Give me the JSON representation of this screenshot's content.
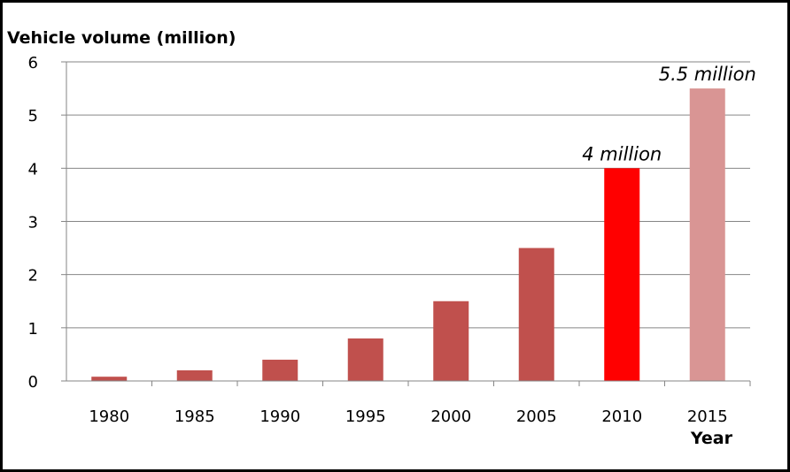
{
  "chart_data": {
    "type": "bar",
    "title": "",
    "ylabel": "Vehicle volume (million)",
    "xlabel": "Year",
    "categories": [
      "1980",
      "1985",
      "1990",
      "1995",
      "2000",
      "2005",
      "2010",
      "2015"
    ],
    "values": [
      0.08,
      0.2,
      0.4,
      0.8,
      1.5,
      2.5,
      4.0,
      5.5
    ],
    "bar_colors": [
      "#c0504d",
      "#c0504d",
      "#c0504d",
      "#c0504d",
      "#c0504d",
      "#c0504d",
      "#ff0000",
      "#d99594"
    ],
    "ylim": [
      0,
      6
    ],
    "yticks": [
      "0",
      "1",
      "2",
      "3",
      "4",
      "5",
      "6"
    ],
    "grid": true,
    "legend": "none",
    "annotations": [
      {
        "category": "2010",
        "text": "4 million"
      },
      {
        "category": "2015",
        "text": "5.5 million"
      }
    ]
  }
}
